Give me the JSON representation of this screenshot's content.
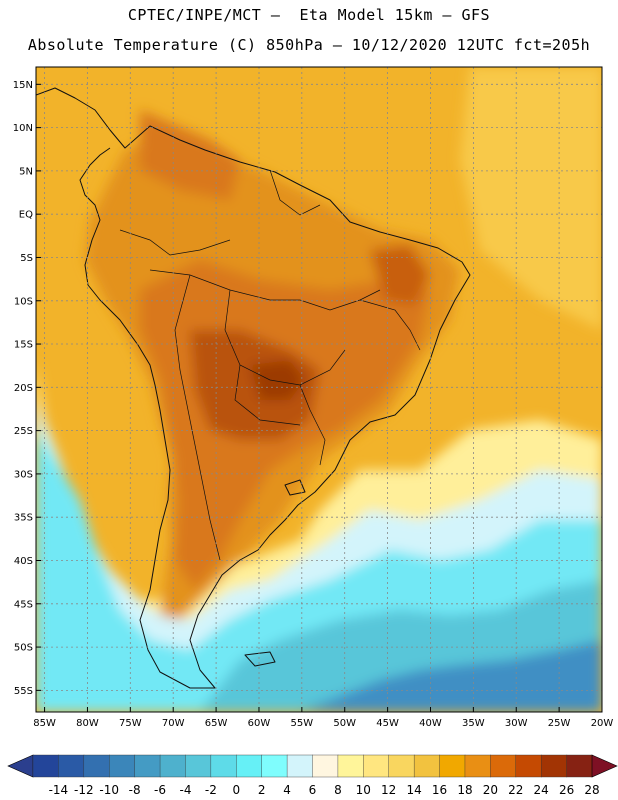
{
  "header": {
    "title_line1": "CPTEC/INPE/MCT –  Eta Model 15km – GFS",
    "title_line2": "Absolute Temperature (C) 850hPa – 10/12/2020 12UTC fct=205h"
  },
  "map": {
    "lat_labels": [
      "15N",
      "10N",
      "5N",
      "EQ",
      "5S",
      "10S",
      "15S",
      "20S",
      "25S",
      "30S",
      "35S",
      "40S",
      "45S",
      "50S",
      "55S"
    ],
    "lon_labels": [
      "85W",
      "80W",
      "75W",
      "70W",
      "65W",
      "60W",
      "55W",
      "50W",
      "45W",
      "40W",
      "35W",
      "30W",
      "25W",
      "20W"
    ],
    "lat_values": [
      15,
      10,
      5,
      0,
      -5,
      -10,
      -15,
      -20,
      -25,
      -30,
      -35,
      -40,
      -45,
      -50,
      -55
    ],
    "lon_values": [
      -85,
      -80,
      -75,
      -70,
      -65,
      -60,
      -55,
      -50,
      -45,
      -40,
      -35,
      -30,
      -25,
      -20
    ],
    "extent": {
      "lon_min": -86,
      "lon_max": -20,
      "lat_min": -57.5,
      "lat_max": 17
    }
  },
  "colorbar": {
    "labels": [
      "-14",
      "-12",
      "-10",
      "-8",
      "-6",
      "-4",
      "-2",
      "0",
      "2",
      "4",
      "6",
      "8",
      "10",
      "12",
      "14",
      "16",
      "18",
      "20",
      "22",
      "24",
      "26",
      "28"
    ],
    "colors": [
      "#23459a",
      "#2a5aa6",
      "#3370b0",
      "#3b86ba",
      "#449bc4",
      "#4eb1cd",
      "#58c6d9",
      "#5edbe8",
      "#66f0f6",
      "#7ffdfd",
      "#d3f4fb",
      "#fff6e0",
      "#fff59a",
      "#ffe680",
      "#f9d65f",
      "#f2c23f",
      "#f1a800",
      "#e98f14",
      "#db6a09",
      "#c54a02",
      "#a23404",
      "#862213"
    ],
    "left_arrow": "#2b3f8e",
    "right_arrow": "#7e1024"
  },
  "regions": {
    "background_warm": "#f2b32a",
    "background_northeast": "#f8c94a",
    "continent_core": "#d9781b",
    "hot_core": "#b9530c",
    "cool_band": "#ffef9a",
    "cold_sea": "#72e8f5",
    "deep_cold": "#3f8fc4"
  }
}
